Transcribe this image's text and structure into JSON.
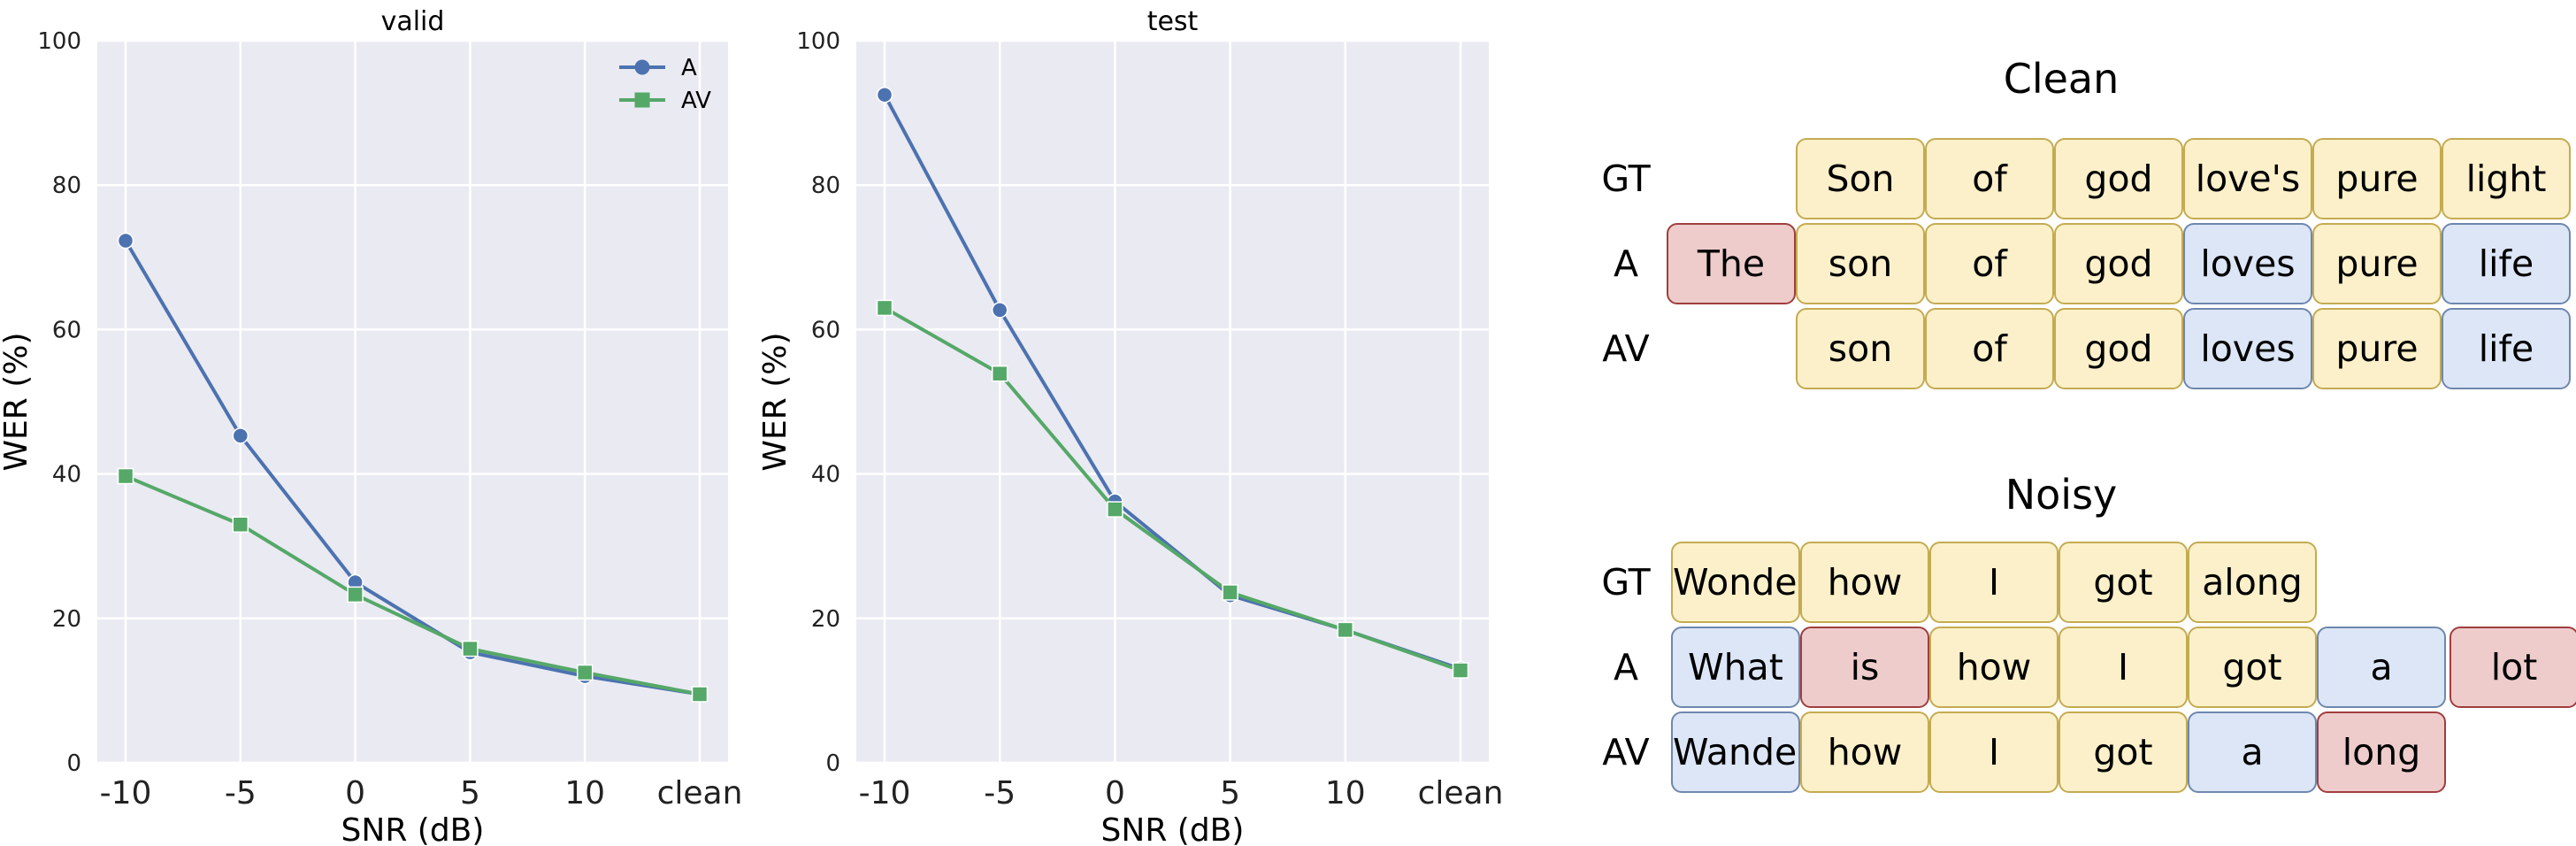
{
  "chart_data": [
    {
      "type": "line",
      "title": "valid",
      "xlabel": "SNR (dB)",
      "ylabel": "WER (%)",
      "categories": [
        "-10",
        "-5",
        "0",
        "5",
        "10",
        "clean"
      ],
      "yticks": [
        "0",
        "20",
        "40",
        "60",
        "80",
        "100"
      ],
      "ylim": [
        0,
        100
      ],
      "grid": true,
      "legend": "top-right",
      "series": [
        {
          "name": "A",
          "values": [
            72.3,
            45.3,
            25.0,
            15.3,
            12.0,
            9.5
          ],
          "color": "#4c72b0",
          "marker": "circle"
        },
        {
          "name": "AV",
          "values": [
            39.7,
            33.0,
            23.3,
            15.8,
            12.5,
            9.5
          ],
          "color": "#55a868",
          "marker": "square"
        }
      ]
    },
    {
      "type": "line",
      "title": "test",
      "xlabel": "SNR (dB)",
      "ylabel": "WER (%)",
      "categories": [
        "-10",
        "-5",
        "0",
        "5",
        "10",
        "clean"
      ],
      "yticks": [
        "0",
        "20",
        "40",
        "60",
        "80",
        "100"
      ],
      "ylim": [
        0,
        100
      ],
      "grid": true,
      "series": [
        {
          "name": "A",
          "values": [
            92.5,
            62.7,
            36.2,
            23.2,
            18.4,
            13.0
          ],
          "color": "#4c72b0",
          "marker": "circle"
        },
        {
          "name": "AV",
          "values": [
            63.0,
            53.9,
            35.1,
            23.6,
            18.4,
            12.8
          ],
          "color": "#55a868",
          "marker": "square"
        }
      ]
    }
  ],
  "examples": {
    "legend_colors": {
      "match": "#fbf0c9",
      "insert": "#eecccc",
      "subst": "#dce6f6"
    },
    "clean": {
      "title": "Clean",
      "rows": [
        {
          "label": "GT",
          "tokens": [
            {
              "text": "Son",
              "t": "match"
            },
            {
              "text": "of",
              "t": "match"
            },
            {
              "text": "god",
              "t": "match"
            },
            {
              "text": "love's",
              "t": "match"
            },
            {
              "text": "pure",
              "t": "match"
            },
            {
              "text": "light",
              "t": "match"
            }
          ]
        },
        {
          "label": "A",
          "tokens": [
            {
              "text": "The",
              "t": "insert"
            },
            {
              "text": "son",
              "t": "match"
            },
            {
              "text": "of",
              "t": "match"
            },
            {
              "text": "god",
              "t": "match"
            },
            {
              "text": "loves",
              "t": "subst"
            },
            {
              "text": "pure",
              "t": "match"
            },
            {
              "text": "life",
              "t": "subst"
            }
          ]
        },
        {
          "label": "AV",
          "tokens": [
            {
              "text": "son",
              "t": "match"
            },
            {
              "text": "of",
              "t": "match"
            },
            {
              "text": "god",
              "t": "match"
            },
            {
              "text": "loves",
              "t": "subst"
            },
            {
              "text": "pure",
              "t": "match"
            },
            {
              "text": "life",
              "t": "subst"
            }
          ]
        }
      ]
    },
    "noisy": {
      "title": "Noisy",
      "rows": [
        {
          "label": "GT",
          "tokens": [
            {
              "text": "Wonder",
              "t": "match"
            },
            {
              "text": "how",
              "t": "match"
            },
            {
              "text": "I",
              "t": "match"
            },
            {
              "text": "got",
              "t": "match"
            },
            {
              "text": "along",
              "t": "match"
            }
          ]
        },
        {
          "label": "A",
          "tokens": [
            {
              "text": "What",
              "t": "subst"
            },
            {
              "text": "is",
              "t": "insert"
            },
            {
              "text": "how",
              "t": "match"
            },
            {
              "text": "I",
              "t": "match"
            },
            {
              "text": "got",
              "t": "match"
            },
            {
              "text": "a",
              "t": "subst"
            },
            {
              "text": "lot",
              "t": "insert"
            }
          ]
        },
        {
          "label": "AV",
          "tokens": [
            {
              "text": "Wander",
              "t": "subst"
            },
            {
              "text": "how",
              "t": "match"
            },
            {
              "text": "I",
              "t": "match"
            },
            {
              "text": "got",
              "t": "match"
            },
            {
              "text": "a",
              "t": "subst"
            },
            {
              "text": "long",
              "t": "insert"
            }
          ]
        }
      ]
    }
  }
}
